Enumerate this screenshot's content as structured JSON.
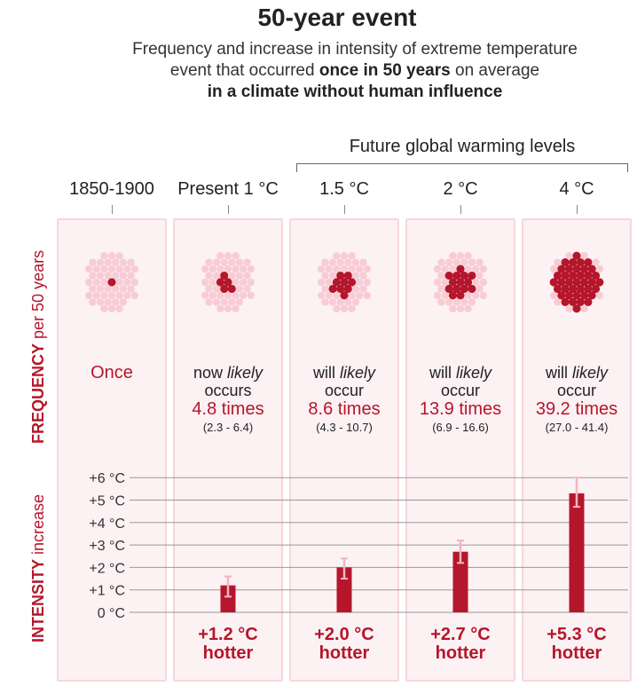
{
  "title": "50-year event",
  "subtitle": {
    "line1": "Frequency and increase in intensity of extreme temperature",
    "line2_pre": "event that occurred ",
    "line2_bold": "once in 50 years",
    "line2_post": " on average",
    "line3": "in a climate without human influence"
  },
  "future_label": "Future global warming levels",
  "side_labels": {
    "frequency_big": "FREQUENCY",
    "frequency_small": " per 50 years",
    "intensity_big": "INTENSITY",
    "intensity_small": " increase"
  },
  "colors": {
    "accent": "#b5162b",
    "dot_light": "#f8ccd5",
    "dot_dark": "#b5162b",
    "panel_bg": "#fcf1f3",
    "error_bar": "#f0b6c1"
  },
  "columns": [
    {
      "header": "1850-1900",
      "freq_pre": "",
      "freq_italic": "",
      "freq_post": "",
      "times": "",
      "range": "",
      "once": "Once",
      "hotter_value": "",
      "hotter_word": ""
    },
    {
      "header": "Present 1 °C",
      "freq_pre": "now ",
      "freq_italic": "likely",
      "freq_post": "occurs",
      "times": "4.8 times",
      "range": "(2.3 - 6.4)",
      "once": "",
      "hotter_value": "+1.2 °C",
      "hotter_word": "hotter"
    },
    {
      "header": "1.5 °C",
      "freq_pre": "will ",
      "freq_italic": "likely",
      "freq_post": "occur",
      "times": "8.6 times",
      "range": "(4.3 - 10.7)",
      "once": "",
      "hotter_value": "+2.0 °C",
      "hotter_word": "hotter"
    },
    {
      "header": "2 °C",
      "freq_pre": "will ",
      "freq_italic": "likely",
      "freq_post": "occur",
      "times": "13.9 times",
      "range": "(6.9 - 16.6)",
      "once": "",
      "hotter_value": "+2.7 °C",
      "hotter_word": "hotter"
    },
    {
      "header": "4 °C",
      "freq_pre": "will ",
      "freq_italic": "likely",
      "freq_post": "occur",
      "times": "39.2 times",
      "range": "(27.0 - 41.4)",
      "once": "",
      "hotter_value": "+5.3 °C",
      "hotter_word": "hotter"
    }
  ],
  "chart_data": [
    {
      "type": "scatter",
      "title": "",
      "description_units": "events per 50 years (dots filled out of 50)",
      "categories": [
        "1850-1900",
        "Present 1 °C",
        "1.5 °C",
        "2 °C",
        "4 °C"
      ],
      "values": [
        1,
        4.8,
        8.6,
        13.9,
        39.2
      ],
      "ranges": [
        [
          1,
          1
        ],
        [
          2.3,
          6.4
        ],
        [
          4.3,
          10.7
        ],
        [
          6.9,
          16.6
        ],
        [
          27.0,
          41.4
        ]
      ],
      "total_dots": 50,
      "ylabel": "FREQUENCY per 50 years"
    },
    {
      "type": "bar",
      "title": "",
      "categories": [
        "Present 1 °C",
        "1.5 °C",
        "2 °C",
        "4 °C"
      ],
      "values": [
        1.2,
        2.0,
        2.7,
        5.3
      ],
      "error_low": [
        0.7,
        1.5,
        2.2,
        4.7
      ],
      "error_high": [
        1.6,
        2.4,
        3.2,
        6.0
      ],
      "ylabel": "INTENSITY increase",
      "ylim": [
        0,
        6
      ],
      "yticks": [
        "0 °C",
        "+1 °C",
        "+2 °C",
        "+3 °C",
        "+4 °C",
        "+5 °C",
        "+6 °C"
      ],
      "grid": true
    }
  ]
}
